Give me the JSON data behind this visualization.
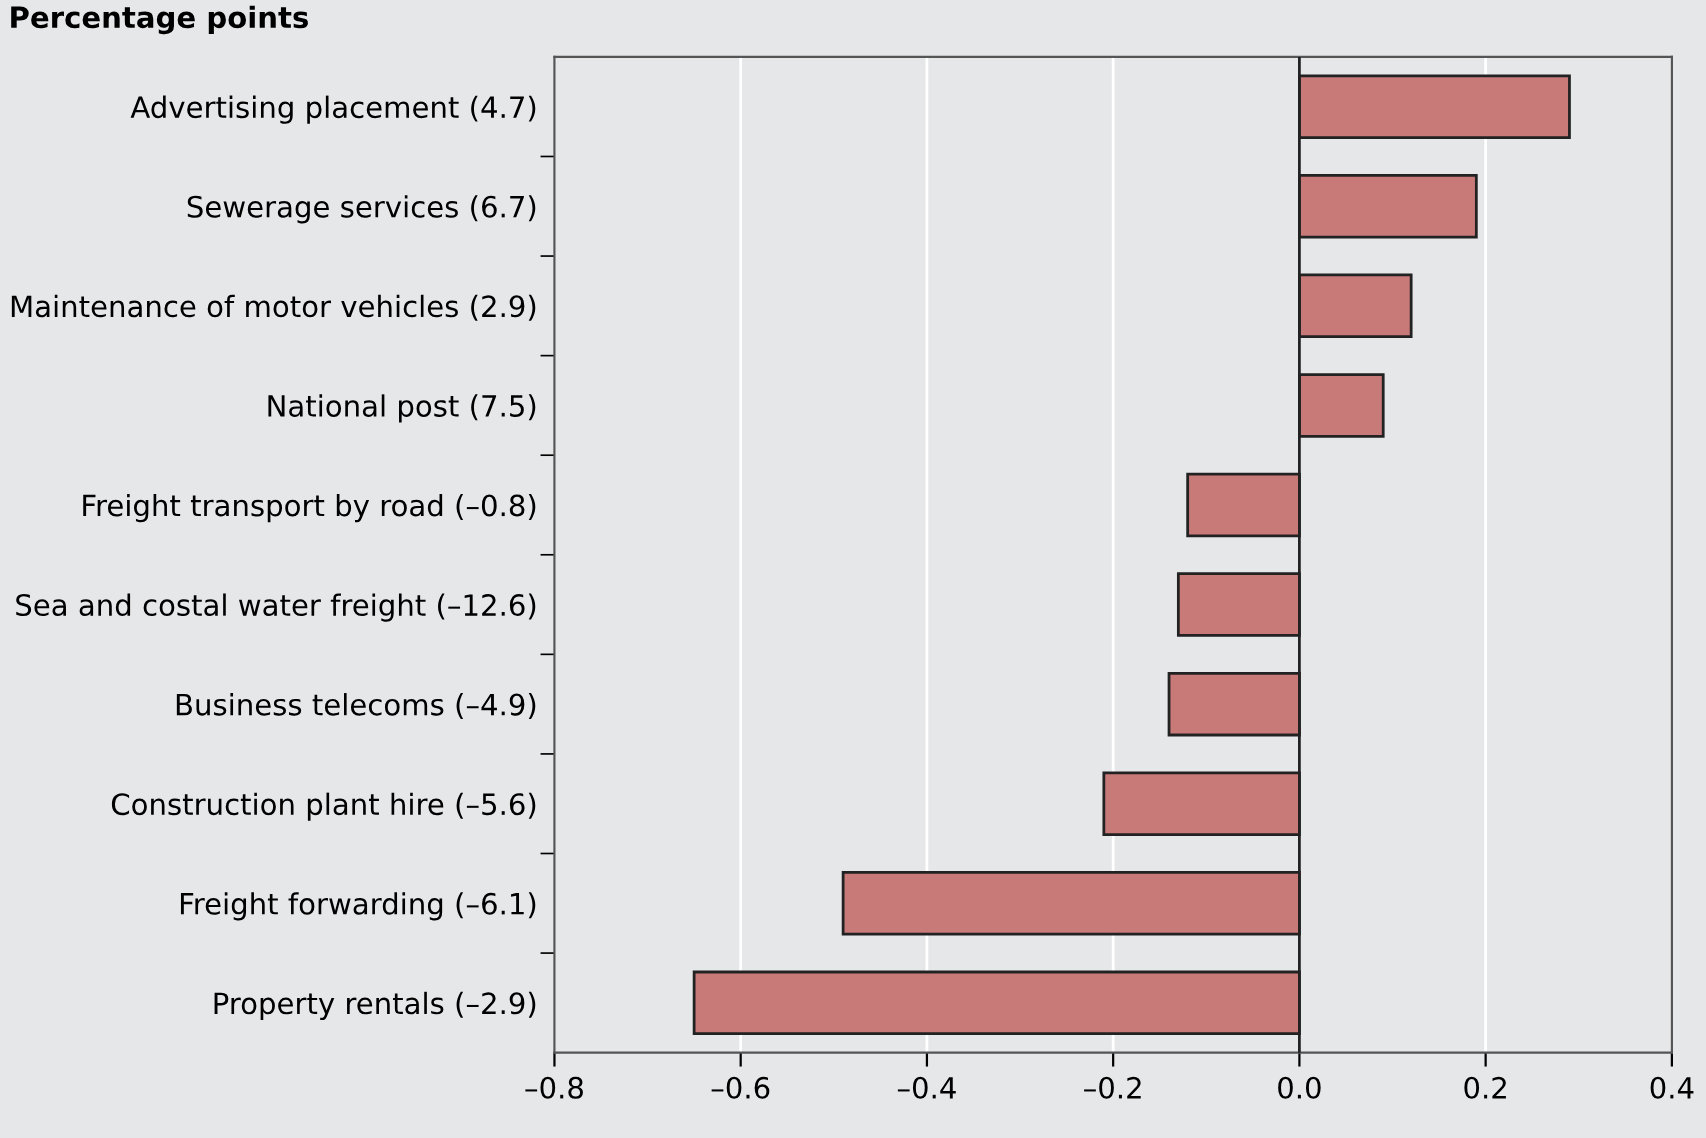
{
  "chart_data": {
    "type": "bar",
    "orientation": "horizontal",
    "categories": [
      "Advertising placement (4.7)",
      "Sewerage services (6.7)",
      "Maintenance of motor vehicles (2.9)",
      "National post (7.5)",
      "Freight transport by road (–0.8)",
      "Sea and costal water freight (–12.6)",
      "Business telecoms (–4.9)",
      "Construction plant hire (–5.6)",
      "Freight forwarding (–6.1)",
      "Property rentals (–2.9)"
    ],
    "values": [
      0.29,
      0.19,
      0.12,
      0.09,
      -0.12,
      -0.13,
      -0.14,
      -0.21,
      -0.49,
      -0.65
    ],
    "color": "#c87a79",
    "xlim": [
      -0.8,
      0.4
    ],
    "xticks": [
      {
        "value": -0.8,
        "label": "–0.8"
      },
      {
        "value": -0.6,
        "label": "–0.6"
      },
      {
        "value": -0.4,
        "label": "–0.4"
      },
      {
        "value": -0.2,
        "label": "–0.2"
      },
      {
        "value": 0,
        "label": "0.0"
      },
      {
        "value": 0.2,
        "label": "0.2"
      },
      {
        "value": 0.4,
        "label": "0.4"
      }
    ],
    "grid": "x",
    "ref_lines": [
      {
        "axis": "x",
        "value": 0,
        "color": "#222222"
      }
    ],
    "annotations": [
      "Percentage points"
    ]
  }
}
